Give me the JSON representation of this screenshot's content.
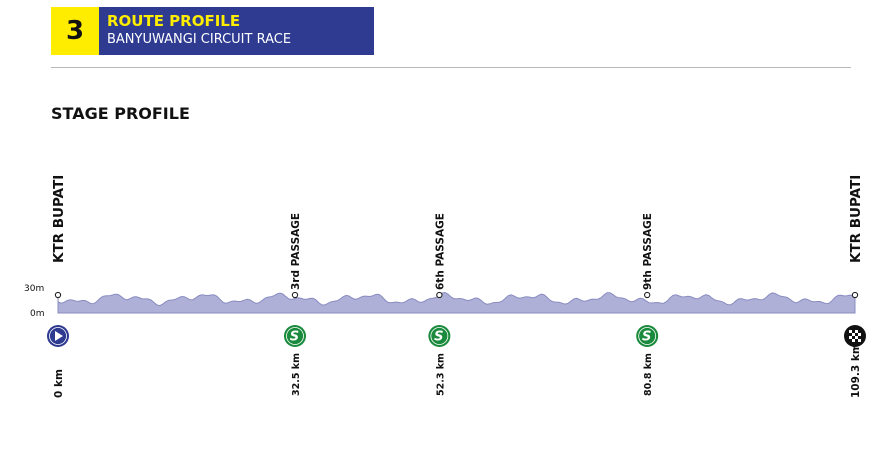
{
  "header": {
    "stage_number": "3",
    "title": "ROUTE PROFILE",
    "subtitle": "BANYUWANGI CIRCUIT RACE"
  },
  "section_title": "STAGE PROFILE",
  "profile": {
    "total_km": 109.3,
    "altitude_labels": [
      "30m",
      "0m"
    ],
    "fill_color": "#aeb0d8",
    "line_color": "#8a8cc0"
  },
  "waypoints": [
    {
      "name": "KTR BUPATI",
      "km": 0,
      "km_label": "0 km",
      "icon": "start-icon"
    },
    {
      "name": "3rd PASSAGE",
      "km": 32.5,
      "km_label": "32.5 km",
      "icon": "sprint-icon"
    },
    {
      "name": "6th PASSAGE",
      "km": 52.3,
      "km_label": "52.3 km",
      "icon": "sprint-icon"
    },
    {
      "name": "9th PASSAGE",
      "km": 80.8,
      "km_label": "80.8 km",
      "icon": "sprint-icon"
    },
    {
      "name": "KTR BUPATI",
      "km": 109.3,
      "km_label": "109.3 km",
      "icon": "finish-icon"
    }
  ],
  "colors": {
    "start": "#2e3b91",
    "sprint": "#1a8a3c",
    "header_yellow": "#ffed00",
    "header_blue": "#2e3b91"
  }
}
